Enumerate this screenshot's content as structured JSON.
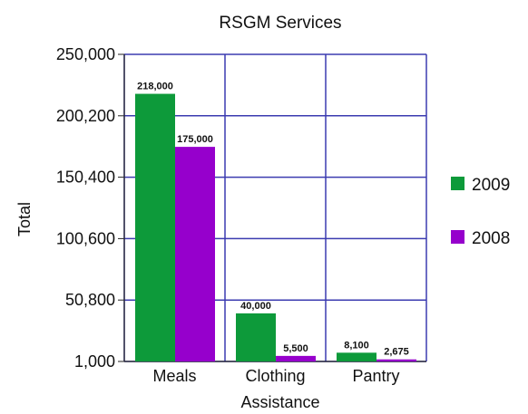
{
  "chart_data": {
    "type": "bar",
    "title": "RSGM Services",
    "xlabel": "Assistance",
    "ylabel": "Total",
    "categories": [
      "Meals",
      "Clothing",
      "Pantry"
    ],
    "series": [
      {
        "name": "2009",
        "color": "#0d9a3a",
        "values": [
          218000,
          40000,
          8100
        ],
        "labels": [
          "218,000",
          "40,000",
          "8,100"
        ]
      },
      {
        "name": "2008",
        "color": "#9600cc",
        "values": [
          175000,
          5500,
          2675
        ],
        "labels": [
          "175,000",
          "5,500",
          "2,675"
        ]
      }
    ],
    "yticks": [
      1000,
      50800,
      100600,
      150400,
      200200,
      250000
    ],
    "ytick_labels": [
      "1,000",
      "50,800",
      "100,600",
      "150,400",
      "200,200",
      "250,000"
    ],
    "ylim": [
      1000,
      250000
    ],
    "grid": true,
    "legend_position": "right",
    "grid_color": "#3b3bb0"
  }
}
